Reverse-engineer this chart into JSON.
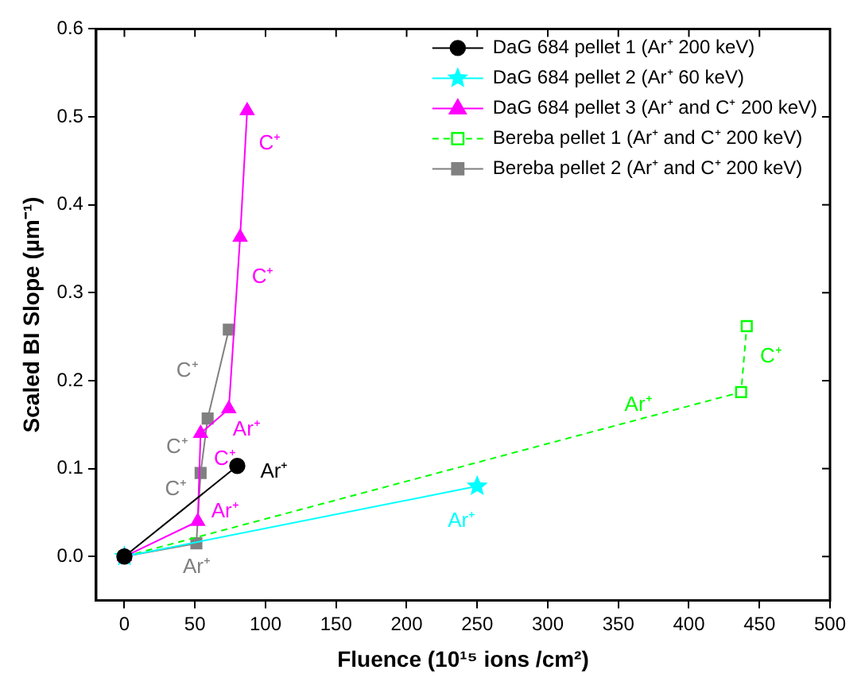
{
  "chart_data": {
    "type": "line",
    "xlabel": "Fluence (10¹⁵ ions /cm²)",
    "ylabel": "Scaled BI Slope (µm⁻¹)",
    "xlim": [
      -20,
      500
    ],
    "ylim": [
      -0.05,
      0.6
    ],
    "xticks": [
      0,
      50,
      100,
      150,
      200,
      250,
      300,
      350,
      400,
      450,
      500
    ],
    "yticks": [
      {
        "value": 0,
        "label": "0.0"
      },
      {
        "value": 0.1,
        "label": "0.1"
      },
      {
        "value": 0.2,
        "label": "0.2"
      },
      {
        "value": 0.3,
        "label": "0.3"
      },
      {
        "value": 0.4,
        "label": "0.4"
      },
      {
        "value": 0.5,
        "label": "0.5"
      },
      {
        "value": 0.6,
        "label": "0.6"
      }
    ],
    "legend": "top right",
    "series": [
      {
        "name": "DaG 684 pellet 1 (Ar⁺ 200 keV)",
        "color": "#000000",
        "marker": "circle",
        "line_style": "solid",
        "x": [
          0,
          80
        ],
        "values": [
          0,
          0.103
        ]
      },
      {
        "name": "DaG 684 pellet 2 (Ar⁺ 60 keV)",
        "color": "#00ffff",
        "marker": "star",
        "line_style": "solid",
        "x": [
          0,
          250
        ],
        "values": [
          0,
          0.08
        ]
      },
      {
        "name": "DaG 684 pellet 3 (Ar⁺ and C⁺ 200 keV)",
        "color": "#ff00ff",
        "marker": "triangle",
        "line_style": "solid",
        "x": [
          0,
          52,
          54,
          74,
          82,
          87
        ],
        "values": [
          0,
          0.04,
          0.14,
          0.168,
          0.363,
          0.507
        ]
      },
      {
        "name": "Bereba pellet 1 (Ar⁺ and C⁺ 200 keV)",
        "color": "#00ff00",
        "marker": "square",
        "line_style": "dashed",
        "x": [
          0,
          437,
          441
        ],
        "values": [
          0,
          0.187,
          0.262
        ]
      },
      {
        "name": "Bereba pellet 2 (Ar⁺ and C⁺ 200 keV)",
        "color": "#808080",
        "marker": "square",
        "line_style": "solid",
        "x": [
          0,
          51,
          54,
          59,
          74
        ],
        "values": [
          0,
          0.015,
          0.095,
          0.157,
          0.258
        ]
      }
    ],
    "annotations": [
      {
        "text": "C⁺",
        "x": 87,
        "y": 0.507
      },
      {
        "text": "C⁺",
        "x": 82,
        "y": 0.363
      },
      {
        "text": "Ar⁺",
        "x": 74,
        "y": 0.168
      },
      {
        "text": "C⁺",
        "x": 54,
        "y": 0.14
      },
      {
        "text": "Ar⁺",
        "x": 52,
        "y": 0.04
      },
      {
        "text": "C⁺",
        "x": 59,
        "y": 0.157
      },
      {
        "text": "C⁺",
        "x": 54,
        "y": 0.095
      },
      {
        "text": "C⁺",
        "x": 51,
        "y": 0.015
      },
      {
        "text": "Ar⁺",
        "x": 51,
        "y": 0.015
      },
      {
        "text": "Ar⁺",
        "x": 80,
        "y": 0.103
      },
      {
        "text": "Ar⁺",
        "x": 250,
        "y": 0.08
      },
      {
        "text": "Ar⁺",
        "x": 364,
        "y": 0.156
      },
      {
        "text": "C⁺",
        "x": 441,
        "y": 0.262
      }
    ]
  }
}
